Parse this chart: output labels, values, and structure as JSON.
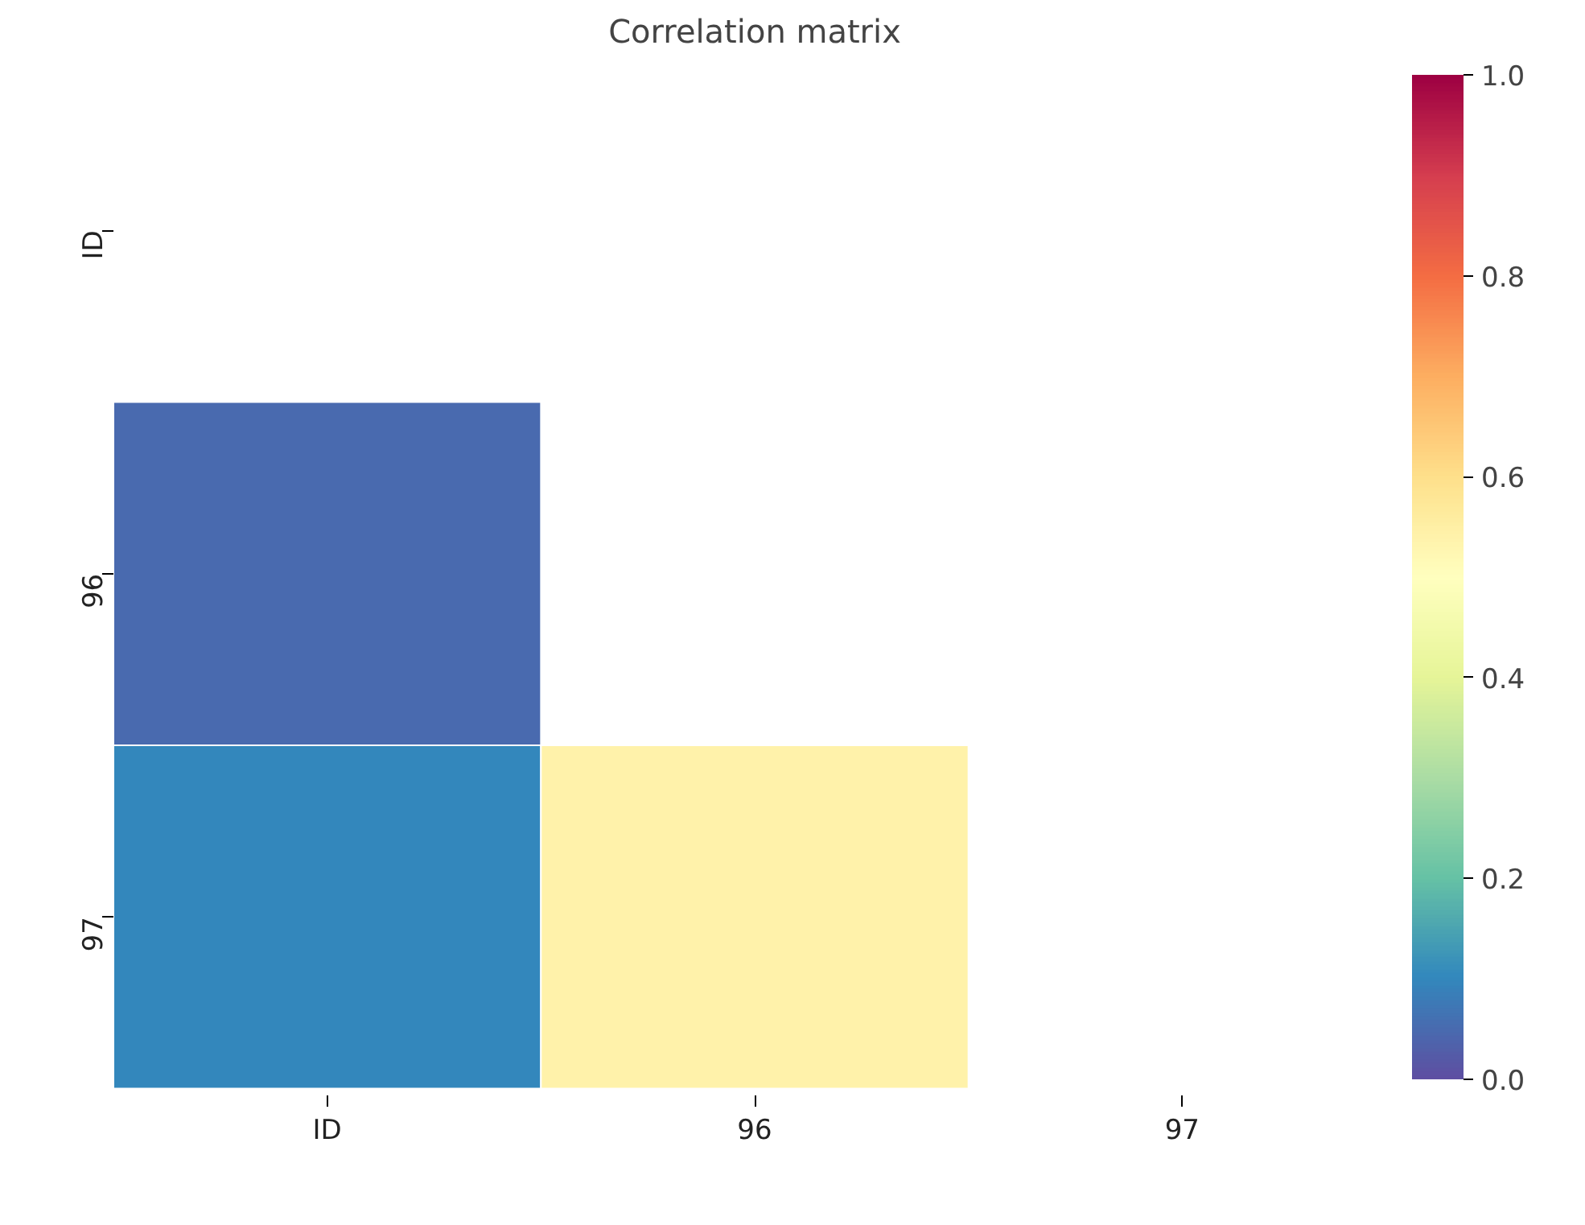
{
  "chart_data": {
    "type": "heatmap",
    "title": "Correlation matrix",
    "categories": [
      "ID",
      "96",
      "97"
    ],
    "y_categories": [
      "ID",
      "96",
      "97"
    ],
    "cells": [
      [
        null,
        null,
        null
      ],
      [
        0.05,
        null,
        null
      ],
      [
        0.1,
        0.54,
        null
      ]
    ],
    "clim": [
      0,
      1
    ],
    "cticks": [
      {
        "value": 0,
        "label": "0.0"
      },
      0.2,
      0.4,
      0.6,
      0.8,
      {
        "value": 1,
        "label": "1.0"
      }
    ],
    "grid": false
  }
}
